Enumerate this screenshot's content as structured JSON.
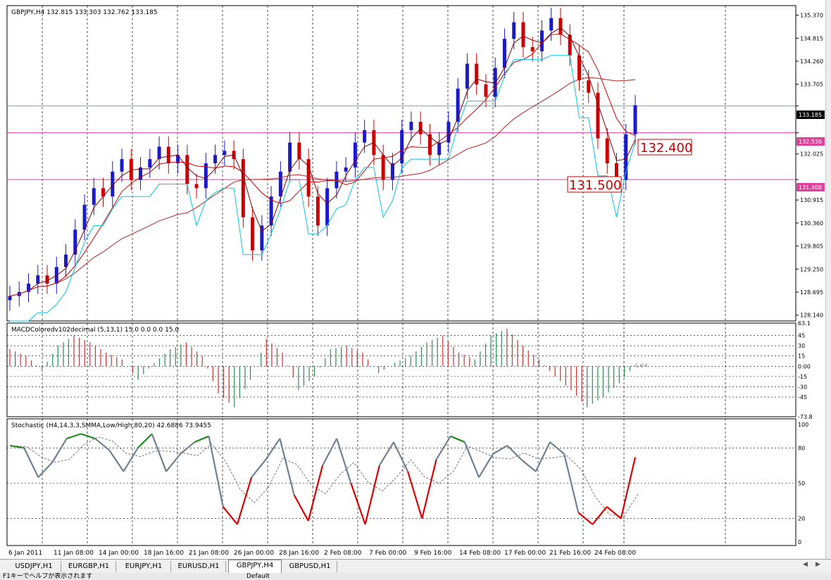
{
  "symbol_header": "GBPJPY,H4  132.815 133.303 132.762 133.185",
  "colors": {
    "up": "#1a1acc",
    "down": "#cc0000",
    "ma_fast": "#800000",
    "ma_mid": "#cc0000",
    "ma_slow": "#b22222",
    "stop": "#00c8e6",
    "hline": "#e0409a",
    "grid": "#000000",
    "macd_pos": "#cc3333",
    "macd_neg": "#2e8b57",
    "stoch_main": "#708090",
    "stoch_hi": "#228b22",
    "stoch_lo": "#dd0000"
  },
  "price_panel": {
    "ylim": [
      128.0,
      135.6
    ],
    "price_ticks": [
      "135.370",
      "134.815",
      "134.260",
      "133.705",
      "133.185",
      "132.536",
      "132.025",
      "131.408",
      "130.915",
      "130.360",
      "129.805",
      "129.250",
      "128.695",
      "128.140"
    ],
    "current_price": "133.185",
    "hline_upper": "132.536",
    "hline_lower": "131.408",
    "label_upper": "132.400",
    "label_lower": "131.500"
  },
  "macd_panel": {
    "title": "MACDColoredv102decimal (5,13,1) 15.0 0.0 0.0 15.0",
    "ticks": [
      "63.1",
      "45",
      "30",
      "15",
      "0.00",
      "-15",
      "-30",
      "-45",
      "-73.8"
    ],
    "current_value": "1.94"
  },
  "stoch_panel": {
    "title": "Stochastic (H4,14,3,3,SMMA,Low/High,80,20) 42.6886 73.9455",
    "ticks": [
      "100",
      "80",
      "50",
      "20",
      "0"
    ]
  },
  "time_labels": [
    "6 Jan 2011",
    "11 Jan 08:00",
    "14 Jan 00:00",
    "18 Jan 16:00",
    "21 Jan 08:00",
    "26 Jan 00:00",
    "28 Jan 16:00",
    "2 Feb 08:00",
    "7 Feb 00:00",
    "9 Feb 16:00",
    "14 Feb 08:00",
    "17 Feb 00:00",
    "21 Feb 16:00",
    "24 Feb 08:00"
  ],
  "tabs": [
    "USDJPY,H1",
    "EURGBP,H1",
    "EURJPY,H1",
    "EURUSD,H1",
    "GBPJPY,H4",
    "GBPUSD,H1"
  ],
  "active_tab": "GBPJPY,H4",
  "status_text": "F1キーでヘルプが表示されます",
  "status_profile": "Default",
  "chart_data": {
    "type": "line",
    "title": "GBPJPY,H4",
    "close_path": [
      128.6,
      128.7,
      128.9,
      129.1,
      128.9,
      129.3,
      129.6,
      130.2,
      130.8,
      131.2,
      131.0,
      131.6,
      131.9,
      131.4,
      131.7,
      131.9,
      132.2,
      131.8,
      132.0,
      131.3,
      131.2,
      131.8,
      132.0,
      132.1,
      131.9,
      130.5,
      129.7,
      130.3,
      131.0,
      131.6,
      132.3,
      131.9,
      131.0,
      130.3,
      131.2,
      131.6,
      131.7,
      132.3,
      132.6,
      132.0,
      131.4,
      131.8,
      132.6,
      132.8,
      132.5,
      132.0,
      132.3,
      132.8,
      133.6,
      134.2,
      133.7,
      133.4,
      134.1,
      134.8,
      135.2,
      134.6,
      134.5,
      135.0,
      135.3,
      134.9,
      134.4,
      133.8,
      133.5,
      132.4,
      131.8,
      131.4,
      132.5,
      133.2
    ],
    "stoch_main": [
      82,
      80,
      55,
      68,
      88,
      92,
      88,
      78,
      60,
      80,
      92,
      60,
      75,
      85,
      90,
      30,
      15,
      55,
      70,
      88,
      40,
      18,
      65,
      88,
      50,
      15,
      65,
      85,
      60,
      20,
      70,
      90,
      85,
      55,
      75,
      82,
      70,
      60,
      85,
      75,
      25,
      15,
      30,
      20,
      72
    ],
    "macd_values": [
      25,
      15,
      -5,
      30,
      45,
      35,
      20,
      10,
      -20,
      5,
      25,
      35,
      15,
      -40,
      -60,
      -20,
      40,
      20,
      -35,
      -15,
      25,
      30,
      20,
      -10,
      5,
      15,
      35,
      45,
      20,
      10,
      45,
      55,
      30,
      10,
      -15,
      -35,
      -60,
      -45,
      -25,
      2
    ]
  }
}
